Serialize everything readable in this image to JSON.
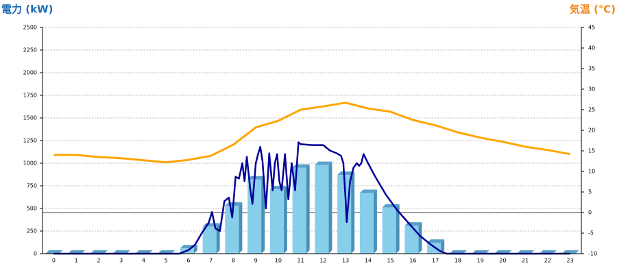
{
  "chart_data": {
    "type": "combo",
    "y_title": "電力 (kW)",
    "y2_title": "気温 (℃)",
    "categories": [
      "0",
      "1",
      "2",
      "3",
      "4",
      "5",
      "6",
      "7",
      "8",
      "9",
      "10",
      "11",
      "12",
      "13",
      "14",
      "15",
      "16",
      "17",
      "18",
      "19",
      "20",
      "21",
      "22",
      "23"
    ],
    "ylim": [
      0,
      2500
    ],
    "yticks": [
      0,
      250,
      500,
      750,
      1000,
      1250,
      1500,
      1750,
      2000,
      2250,
      2500
    ],
    "y2lim": [
      -10,
      45
    ],
    "y2ticks": [
      -10,
      -5,
      0,
      5,
      10,
      15,
      20,
      25,
      30,
      35,
      40,
      45
    ],
    "grid": true,
    "series": [
      {
        "kind": "bar",
        "color": "#87ceeb",
        "values": [
          0,
          0,
          0,
          0,
          0,
          0,
          60,
          300,
          530,
          820,
          710,
          950,
          980,
          870,
          670,
          510,
          310,
          120,
          0,
          0,
          0,
          0,
          0,
          0
        ]
      },
      {
        "kind": "line",
        "color": "#000099",
        "x": [
          0,
          5.6,
          6,
          6.3,
          6.6,
          6.9,
          7.05,
          7.2,
          7.4,
          7.6,
          7.8,
          7.95,
          8.1,
          8.25,
          8.4,
          8.5,
          8.6,
          8.75,
          8.85,
          9,
          9.1,
          9.2,
          9.3,
          9.45,
          9.6,
          9.75,
          9.85,
          9.95,
          10.05,
          10.15,
          10.3,
          10.45,
          10.6,
          10.75,
          10.9,
          11,
          11.5,
          12,
          12.3,
          12.6,
          12.8,
          12.9,
          13,
          13.05,
          13.2,
          13.35,
          13.5,
          13.6,
          13.7,
          13.8,
          14,
          14.3,
          14.8,
          15.3,
          15.8,
          16.3,
          16.8,
          17.2,
          17.5,
          23
        ],
        "values": [
          0,
          0,
          40,
          100,
          230,
          340,
          460,
          280,
          250,
          580,
          620,
          400,
          850,
          830,
          1000,
          800,
          1070,
          720,
          550,
          1000,
          1100,
          1180,
          1020,
          500,
          1110,
          700,
          1000,
          1100,
          800,
          700,
          1100,
          600,
          1000,
          700,
          1230,
          1210,
          1200,
          1200,
          1140,
          1110,
          1080,
          1000,
          600,
          350,
          800,
          950,
          1000,
          970,
          1000,
          1100,
          1000,
          860,
          650,
          480,
          340,
          200,
          100,
          30,
          0,
          0
        ]
      },
      {
        "kind": "line",
        "axis": "y2",
        "color": "#ffa500",
        "values": [
          14,
          14,
          13.5,
          13.2,
          12.7,
          12.2,
          12.8,
          13.8,
          16.5,
          20.7,
          22.3,
          25,
          25.8,
          26.7,
          25.3,
          24.5,
          22.5,
          21.2,
          19.5,
          18.2,
          17.2,
          16,
          15.2,
          14.2
        ]
      }
    ]
  }
}
